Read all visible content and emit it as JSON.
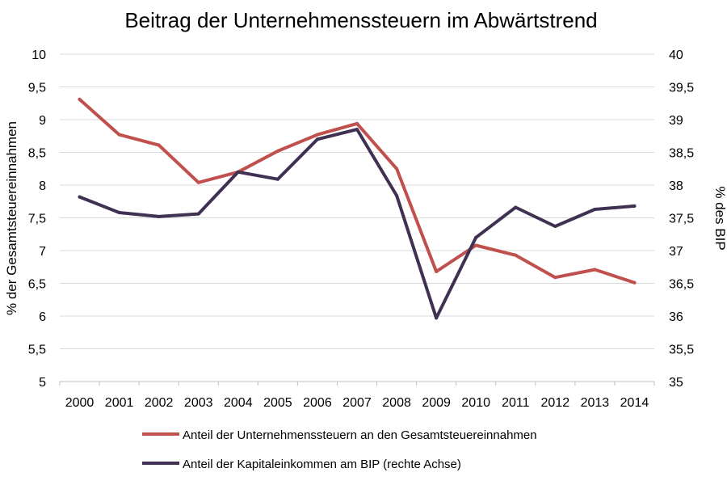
{
  "chart_data": {
    "type": "line",
    "title": "Beitrag der Unternehmenssteuern  im Abwärtstrend",
    "x": [
      "2000",
      "2001",
      "2002",
      "2003",
      "2004",
      "2005",
      "2006",
      "2007",
      "2008",
      "2009",
      "2010",
      "2011",
      "2012",
      "2013",
      "2014"
    ],
    "y_left": {
      "label": "% der Gesamtsteuereinnahmen",
      "range": [
        5,
        10
      ],
      "ticks": [
        "5",
        "5,5",
        "6",
        "6,5",
        "7",
        "7,5",
        "8",
        "8,5",
        "9",
        "9,5",
        "10"
      ]
    },
    "y_right": {
      "label": "% des BIP",
      "range": [
        35,
        40
      ],
      "ticks": [
        "35",
        "35,5",
        "36",
        "36,5",
        "37",
        "37,5",
        "38",
        "38,5",
        "39",
        "39,5",
        "40"
      ]
    },
    "series": [
      {
        "name": "Anteil der Unternehmenssteuern an den Gesamtsteuereinnahmen",
        "axis": "left",
        "color": "#c0504d",
        "values": [
          9.31,
          8.77,
          8.61,
          8.04,
          8.2,
          8.52,
          8.77,
          8.94,
          8.25,
          6.68,
          7.08,
          6.93,
          6.59,
          6.71,
          6.51
        ]
      },
      {
        "name": "Anteil der Kapitaleinkommen am BIP (rechte Achse)",
        "axis": "right",
        "color": "#403152",
        "values": [
          37.82,
          37.58,
          37.52,
          37.56,
          38.2,
          38.09,
          38.7,
          38.85,
          37.84,
          35.97,
          37.2,
          37.66,
          37.37,
          37.63,
          37.68
        ]
      }
    ],
    "grid": true,
    "legend_position": "bottom"
  }
}
